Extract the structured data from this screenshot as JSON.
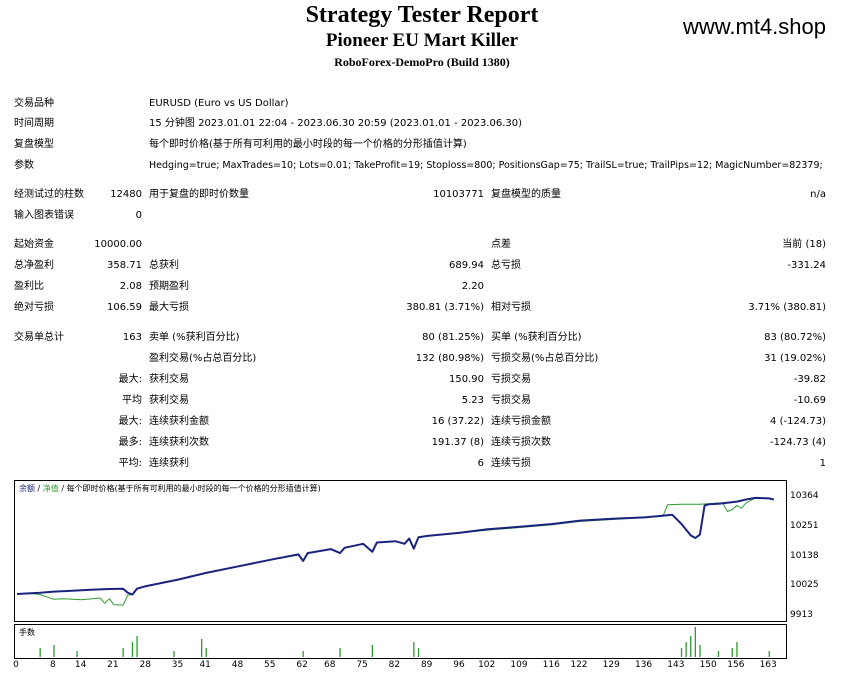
{
  "header": {
    "title": "Strategy Tester Report",
    "subtitle": "Pioneer EU Mart Killer",
    "broker": "RoboForex-DemoPro (Build 1380)",
    "site": "www.mt4.shop"
  },
  "info": [
    {
      "label": "交易品种",
      "value": "EURUSD (Euro vs US Dollar)"
    },
    {
      "label": "时间周期",
      "value": "15 分钟图 2023.01.01 22:04 - 2023.06.30 20:59 (2023.01.01 - 2023.06.30)"
    },
    {
      "label": "复盘模型",
      "value": "每个即时价格(基于所有可利用的最小时段的每一个价格的分形插值计算)"
    },
    {
      "label": "参数",
      "value": "Hedging=true; MaxTrades=10; Lots=0.01; TakeProfit=19; Stoploss=800; PositionsGap=75; TrailSL=true; TrailPips=12; MagicNumber=82379;"
    }
  ],
  "bars": {
    "label": "经测试过的柱数",
    "value": "12480",
    "ticks_label": "用于复盘的即时价数量",
    "ticks_value": "10103771",
    "quality_label": "复盘模型的质量",
    "quality_value": "n/a"
  },
  "errors": {
    "label": "输入图表错误",
    "value": "0"
  },
  "stats": {
    "deposit_label": "起始资金",
    "deposit": "10000.00",
    "spread_label": "点差",
    "spread": "当前 (18)",
    "net_label": "总净盈利",
    "net": "358.71",
    "gross_profit_label": "总获利",
    "gross_profit": "689.94",
    "gross_loss_label": "总亏损",
    "gross_loss": "-331.24",
    "pf_label": "盈利比",
    "pf": "2.08",
    "expected_label": "预期盈利",
    "expected": "2.20",
    "abs_dd_label": "绝对亏损",
    "abs_dd": "106.59",
    "max_dd_label": "最大亏损",
    "max_dd": "380.81 (3.71%)",
    "rel_dd_label": "相对亏损",
    "rel_dd": "3.71% (380.81)",
    "trades_label": "交易单总计",
    "trades": "163",
    "short_label": "卖单 (%获利百分比)",
    "short": "80 (81.25%)",
    "long_label": "买单 (%获利百分比)",
    "long": "83 (80.72%)",
    "profit_trades_label": "盈利交易(%占总百分比)",
    "profit_trades": "132 (80.98%)",
    "loss_trades_label": "亏损交易(%占总百分比)",
    "loss_trades": "31 (19.02%)",
    "largest_label": "最大:",
    "largest_profit_label": "获利交易",
    "largest_profit": "150.90",
    "largest_loss_label": "亏损交易",
    "largest_loss": "-39.82",
    "avg_label": "平均",
    "avg_profit_label": "获利交易",
    "avg_profit": "5.23",
    "avg_loss_label": "亏损交易",
    "avg_loss": "-10.69",
    "max_label": "最大:",
    "max_cons_wins_label": "连续获利金额",
    "max_cons_wins": "16 (37.22)",
    "max_cons_losses_label": "连续亏损金额",
    "max_cons_losses": "4 (-124.73)",
    "most_label": "最多:",
    "max_cons_profit_label": "连续获利次数",
    "max_cons_profit": "191.37 (8)",
    "max_cons_loss_label": "连续亏损次数",
    "max_cons_loss": "-124.73 (4)",
    "avgc_label": "平均:",
    "avg_cons_wins_label": "连续获利",
    "avg_cons_wins": "6",
    "avg_cons_losses_label": "连续亏损",
    "avg_cons_losses": "1"
  },
  "chart_data": {
    "type": "line",
    "legend_balance": "余额",
    "legend_equity": "净值",
    "legend_model": "每个即时价格(基于所有可利用的最小时段的每一个价格的分形插值计算)",
    "volume_label": "手数",
    "y_ticks": [
      "10364",
      "10251",
      "10138",
      "10025",
      "9913"
    ],
    "ylim": [
      9913,
      10390
    ],
    "x_ticks": [
      "0",
      "8",
      "14",
      "21",
      "28",
      "35",
      "41",
      "48",
      "55",
      "62",
      "68",
      "75",
      "82",
      "89",
      "96",
      "102",
      "109",
      "116",
      "122",
      "129",
      "136",
      "143",
      "150",
      "156",
      "163"
    ],
    "xlim": [
      0,
      166
    ],
    "colors": {
      "balance": "#1a237e",
      "equity": "#2e9c2e",
      "volume": "#2e9c2e"
    },
    "balance": [
      [
        0,
        10000
      ],
      [
        5,
        10005
      ],
      [
        8,
        10009
      ],
      [
        12,
        10012
      ],
      [
        16,
        10016
      ],
      [
        20,
        10019
      ],
      [
        23,
        10020
      ],
      [
        24,
        10005
      ],
      [
        25,
        9998
      ],
      [
        26,
        10020
      ],
      [
        28,
        10030
      ],
      [
        35,
        10055
      ],
      [
        41,
        10080
      ],
      [
        48,
        10105
      ],
      [
        55,
        10130
      ],
      [
        61,
        10150
      ],
      [
        62,
        10125
      ],
      [
        63,
        10155
      ],
      [
        68,
        10170
      ],
      [
        70,
        10155
      ],
      [
        71,
        10175
      ],
      [
        75,
        10190
      ],
      [
        77,
        10160
      ],
      [
        78,
        10195
      ],
      [
        82,
        10200
      ],
      [
        84,
        10190
      ],
      [
        85,
        10210
      ],
      [
        86,
        10172
      ],
      [
        87,
        10215
      ],
      [
        89,
        10220
      ],
      [
        96,
        10232
      ],
      [
        102,
        10245
      ],
      [
        109,
        10255
      ],
      [
        116,
        10265
      ],
      [
        122,
        10278
      ],
      [
        129,
        10285
      ],
      [
        136,
        10290
      ],
      [
        139,
        10295
      ],
      [
        142,
        10300
      ],
      [
        144,
        10265
      ],
      [
        146,
        10222
      ],
      [
        147,
        10212
      ],
      [
        148,
        10225
      ],
      [
        149,
        10335
      ],
      [
        150,
        10340
      ],
      [
        152,
        10342
      ],
      [
        156,
        10350
      ],
      [
        158,
        10358
      ],
      [
        160,
        10364
      ],
      [
        163,
        10362
      ],
      [
        164,
        10358
      ]
    ],
    "equity": [
      [
        0,
        10000
      ],
      [
        3,
        10002
      ],
      [
        5,
        9998
      ],
      [
        8,
        9980
      ],
      [
        10,
        9982
      ],
      [
        14,
        9978
      ],
      [
        18,
        9985
      ],
      [
        19,
        9965
      ],
      [
        20,
        9982
      ],
      [
        21,
        9960
      ],
      [
        23,
        9958
      ],
      [
        24,
        9995
      ],
      [
        25,
        9998
      ],
      [
        26,
        10020
      ],
      [
        28,
        10030
      ],
      [
        35,
        10055
      ],
      [
        41,
        10080
      ],
      [
        48,
        10105
      ],
      [
        55,
        10130
      ],
      [
        61,
        10148
      ],
      [
        62,
        10125
      ],
      [
        63,
        10155
      ],
      [
        68,
        10170
      ],
      [
        70,
        10155
      ],
      [
        71,
        10175
      ],
      [
        75,
        10190
      ],
      [
        77,
        10160
      ],
      [
        78,
        10195
      ],
      [
        82,
        10200
      ],
      [
        84,
        10190
      ],
      [
        85,
        10210
      ],
      [
        86,
        10172
      ],
      [
        87,
        10215
      ],
      [
        89,
        10220
      ],
      [
        96,
        10232
      ],
      [
        102,
        10242
      ],
      [
        109,
        10252
      ],
      [
        116,
        10262
      ],
      [
        122,
        10275
      ],
      [
        129,
        10282
      ],
      [
        136,
        10290
      ],
      [
        138,
        10292
      ],
      [
        140,
        10295
      ],
      [
        141,
        10338
      ],
      [
        144,
        10340
      ],
      [
        148,
        10340
      ],
      [
        151,
        10343
      ],
      [
        152,
        10345
      ],
      [
        153,
        10342
      ],
      [
        154,
        10312
      ],
      [
        155,
        10320
      ],
      [
        156,
        10335
      ],
      [
        157,
        10325
      ],
      [
        158,
        10345
      ],
      [
        160,
        10364
      ],
      [
        163,
        10362
      ],
      [
        164,
        10358
      ]
    ],
    "volume": [
      [
        5,
        0.3
      ],
      [
        8,
        0.4
      ],
      [
        13,
        0.2
      ],
      [
        23,
        0.3
      ],
      [
        25,
        0.5
      ],
      [
        26,
        0.7
      ],
      [
        34,
        0.2
      ],
      [
        40,
        0.6
      ],
      [
        41,
        0.3
      ],
      [
        62,
        0.2
      ],
      [
        70,
        0.3
      ],
      [
        77,
        0.4
      ],
      [
        86,
        0.5
      ],
      [
        87,
        0.3
      ],
      [
        144,
        0.3
      ],
      [
        145,
        0.5
      ],
      [
        146,
        0.7
      ],
      [
        147,
        1.0
      ],
      [
        148,
        0.4
      ],
      [
        152,
        0.2
      ],
      [
        155,
        0.3
      ],
      [
        156,
        0.5
      ],
      [
        163,
        0.2
      ]
    ]
  }
}
